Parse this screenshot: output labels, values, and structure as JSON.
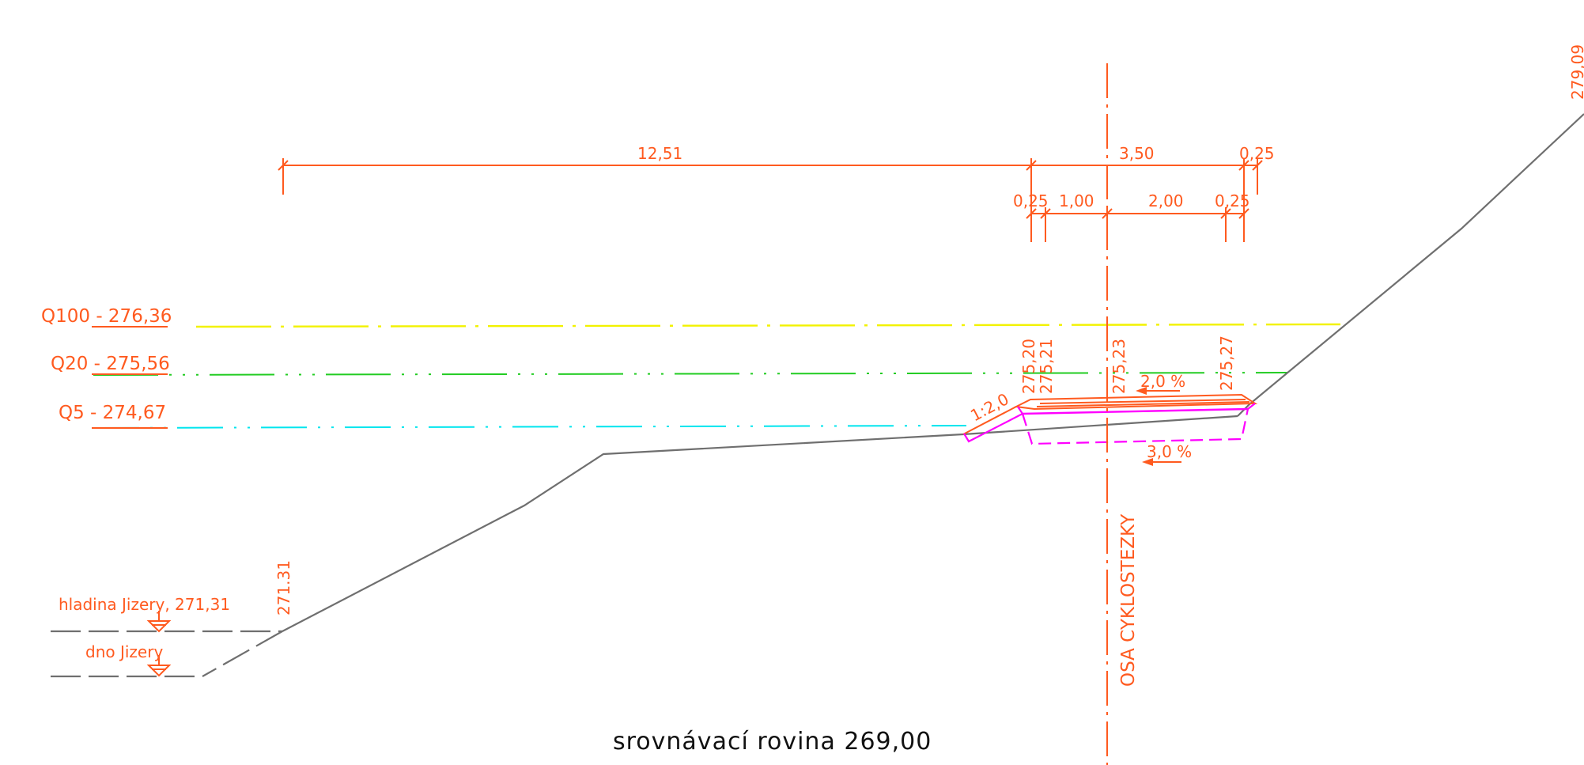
{
  "colors": {
    "annotation": "#ff5a1f",
    "ground": "#6f6f6f",
    "water_q100": "#f2f200",
    "water_q20": "#22cc22",
    "water_q5": "#00e5ee",
    "new_structure": "#ff00ff",
    "text_reference": "#111111"
  },
  "dimensions_top": [
    "12,51",
    "3,50",
    "0,25"
  ],
  "dimensions_lower": [
    "0,25",
    "1,00",
    "2,00",
    "0,25"
  ],
  "water_levels": {
    "q100": "Q100 - 276,36",
    "q20": "Q20 - 275,56",
    "q5": "Q5 - 274,67"
  },
  "elevations": {
    "left_edge": "275,20",
    "left_inner": "275,21",
    "axis": "275,23",
    "right_edge": "275,27",
    "river_bank": "271.31",
    "top_right": "279,09"
  },
  "slope_label": "1:2,0",
  "cross_falls": {
    "surface": "2,0 %",
    "subgrade": "3,0 %"
  },
  "river": {
    "water_surface": "hladina Jizery, 271,31",
    "bed": "dno Jizery"
  },
  "axis_label": "OSA CYKLOSTEZKY",
  "datum_label": "srovnávací rovina 269,00"
}
